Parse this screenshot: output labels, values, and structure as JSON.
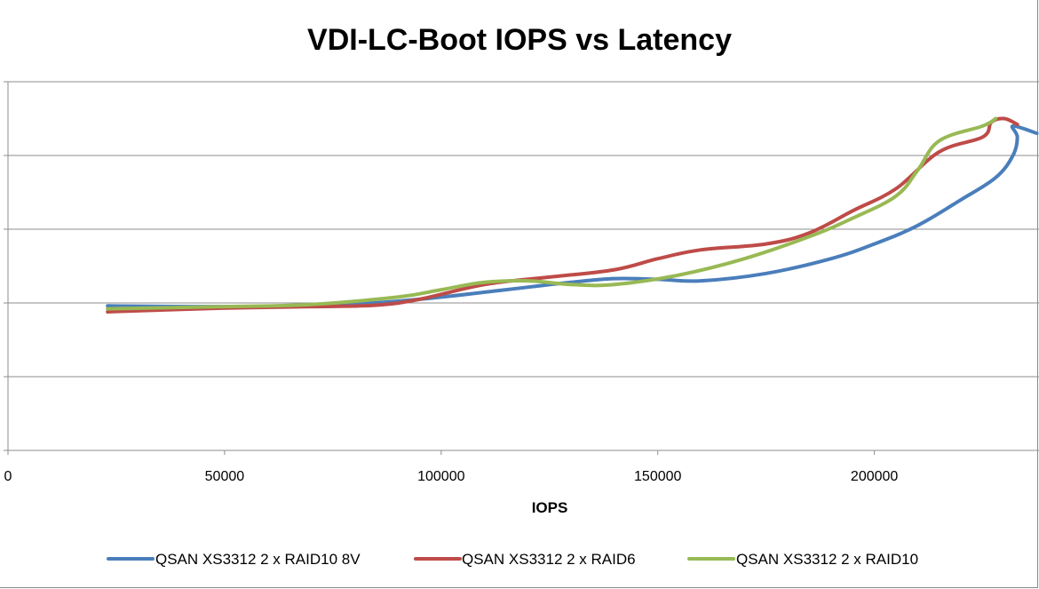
{
  "chart_data": {
    "type": "line",
    "title": "VDI-LC-Boot IOPS vs Latency",
    "xlabel": "IOPS",
    "ylabel": "",
    "xlim": [
      0,
      238000
    ],
    "ylim": [
      0,
      5
    ],
    "x_ticks": [
      0,
      50000,
      100000,
      150000,
      200000
    ],
    "y_gridlines": [
      1,
      2,
      3,
      4,
      5
    ],
    "grid": true,
    "legend_position": "bottom",
    "series": [
      {
        "name": "QSAN XS3312 2 x RAID10 8V",
        "color": "#4a7ebb",
        "points": [
          [
            23000,
            1.96
          ],
          [
            50000,
            1.95
          ],
          [
            75000,
            1.97
          ],
          [
            95000,
            2.05
          ],
          [
            115000,
            2.18
          ],
          [
            130000,
            2.28
          ],
          [
            140000,
            2.33
          ],
          [
            150000,
            2.32
          ],
          [
            160000,
            2.3
          ],
          [
            175000,
            2.4
          ],
          [
            190000,
            2.6
          ],
          [
            200000,
            2.8
          ],
          [
            210000,
            3.05
          ],
          [
            220000,
            3.4
          ],
          [
            228000,
            3.7
          ],
          [
            232000,
            4.0
          ],
          [
            233000,
            4.25
          ],
          [
            232000,
            4.4
          ],
          [
            237500,
            4.3
          ]
        ]
      },
      {
        "name": "QSAN XS3312 2 x RAID6",
        "color": "#be4b48",
        "points": [
          [
            23000,
            1.88
          ],
          [
            50000,
            1.93
          ],
          [
            70000,
            1.95
          ],
          [
            85000,
            1.97
          ],
          [
            95000,
            2.05
          ],
          [
            110000,
            2.25
          ],
          [
            125000,
            2.35
          ],
          [
            140000,
            2.45
          ],
          [
            150000,
            2.6
          ],
          [
            160000,
            2.72
          ],
          [
            175000,
            2.8
          ],
          [
            185000,
            2.95
          ],
          [
            195000,
            3.25
          ],
          [
            205000,
            3.55
          ],
          [
            215000,
            4.05
          ],
          [
            225000,
            4.25
          ],
          [
            227000,
            4.45
          ],
          [
            230000,
            4.5
          ],
          [
            233000,
            4.42
          ]
        ]
      },
      {
        "name": "QSAN XS3312 2 x RAID10",
        "color": "#98b954",
        "points": [
          [
            23000,
            1.92
          ],
          [
            50000,
            1.95
          ],
          [
            70000,
            1.98
          ],
          [
            90000,
            2.08
          ],
          [
            100000,
            2.18
          ],
          [
            110000,
            2.28
          ],
          [
            120000,
            2.3
          ],
          [
            130000,
            2.25
          ],
          [
            140000,
            2.25
          ],
          [
            155000,
            2.38
          ],
          [
            170000,
            2.6
          ],
          [
            185000,
            2.9
          ],
          [
            195000,
            3.15
          ],
          [
            205000,
            3.45
          ],
          [
            210000,
            3.8
          ],
          [
            215000,
            4.2
          ],
          [
            225000,
            4.4
          ],
          [
            228000,
            4.5
          ]
        ]
      }
    ]
  }
}
